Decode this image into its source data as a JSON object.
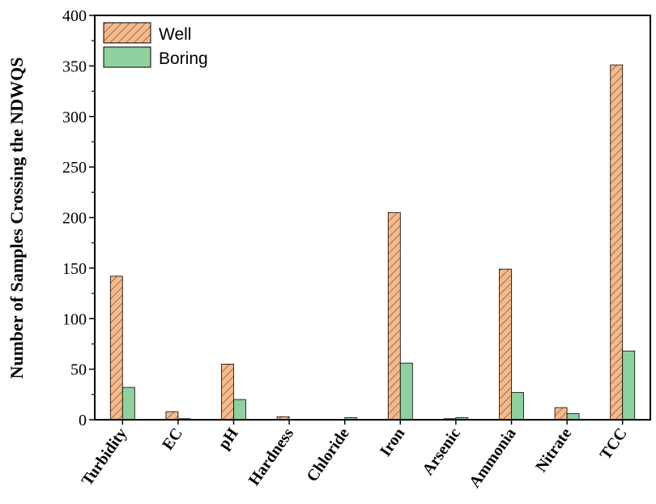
{
  "chart_data": {
    "type": "bar",
    "categories": [
      "Turbidity",
      "EC",
      "pH",
      "Hardness",
      "Chloride",
      "Iron",
      "Arsenic",
      "Ammonia",
      "Nitrate",
      "TCC"
    ],
    "series": [
      {
        "name": "Well",
        "values": [
          142,
          8,
          55,
          3,
          0,
          205,
          1,
          149,
          12,
          351
        ],
        "color": "#f5b98a",
        "pattern": "diagonal-hatch"
      },
      {
        "name": "Boring",
        "values": [
          32,
          1,
          20,
          0,
          2,
          56,
          2,
          27,
          6,
          68
        ],
        "color": "#8fd19e",
        "pattern": "solid"
      }
    ],
    "xlabel": "",
    "ylabel": "Number of Samples Crossing the NDWQS",
    "ylim": [
      0,
      400
    ],
    "yticks": [
      0,
      50,
      100,
      150,
      200,
      250,
      300,
      350,
      400
    ],
    "grid": false,
    "legend": "top-left"
  }
}
